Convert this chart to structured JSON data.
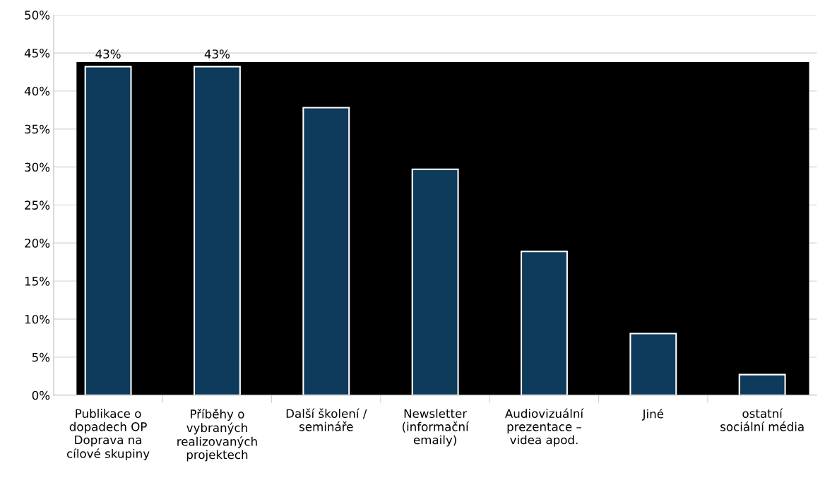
{
  "chart_data": {
    "type": "bar",
    "categories": [
      "Publikace o\ndopadech OP\nDoprava na\ncílové skupiny",
      "Příběhy o\nvybraných\nrealizovaných\nprojektech",
      "Další školení /\nsemináře",
      "Newsletter\n(informační\nemaily)",
      "Audiovizuální\nprezentace –\nvidea apod.",
      "Jiné",
      "ostatní\nsociální média"
    ],
    "values": [
      43.2,
      43.2,
      37.8,
      29.7,
      18.9,
      8.1,
      2.7
    ],
    "value_labels": [
      "43%",
      "43%",
      null,
      null,
      null,
      null,
      null
    ],
    "color": "#0e3a5c",
    "ylim": [
      0,
      50
    ],
    "yticks": [
      {
        "value": 0,
        "label": "0%"
      },
      {
        "value": 5,
        "label": "5%"
      },
      {
        "value": 10,
        "label": "10%"
      },
      {
        "value": 15,
        "label": "15%"
      },
      {
        "value": 20,
        "label": "20%"
      },
      {
        "value": 25,
        "label": "25%"
      },
      {
        "value": 30,
        "label": "30%"
      },
      {
        "value": 35,
        "label": "35%"
      },
      {
        "value": 40,
        "label": "40%"
      },
      {
        "value": 45,
        "label": "45%"
      },
      {
        "value": 50,
        "label": "50%"
      }
    ],
    "bands": [
      {
        "axis": "y",
        "from": 0,
        "to": 43.8,
        "color": "#000000"
      }
    ],
    "grid": "y"
  }
}
